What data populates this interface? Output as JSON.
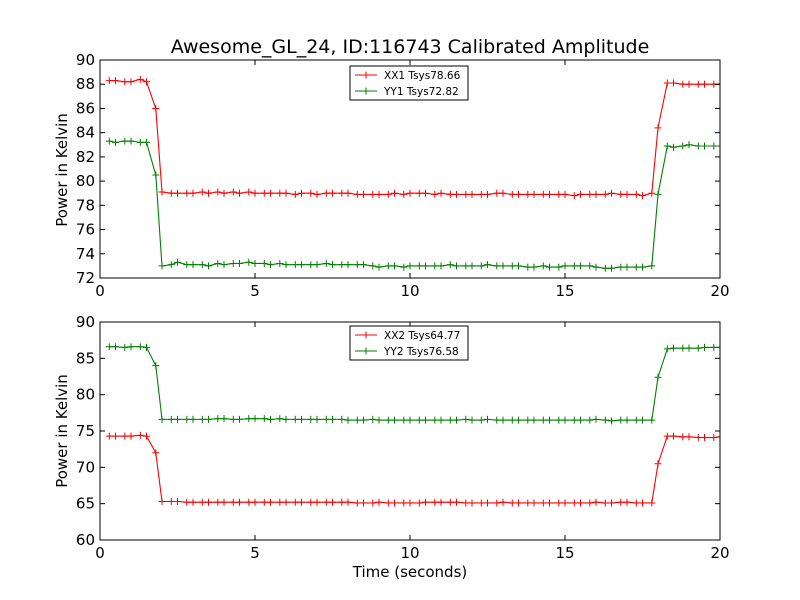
{
  "chart_data": [
    {
      "type": "line",
      "title": "Awesome_GL_24, ID:116743 Calibrated Amplitude",
      "xlabel": "",
      "ylabel": "Power in Kelvin",
      "xlim": [
        0,
        20
      ],
      "ylim": [
        72,
        90
      ],
      "xticks": [
        0,
        5,
        10,
        15,
        20
      ],
      "yticks": [
        72,
        74,
        76,
        78,
        80,
        82,
        84,
        86,
        88,
        90
      ],
      "legend_position": "top-center",
      "series": [
        {
          "name": "XX1 Tsys78.66",
          "color": "#ff0000",
          "x": [
            0.3,
            0.5,
            0.8,
            1.0,
            1.3,
            1.5,
            1.8,
            2.0,
            2.3,
            2.5,
            2.8,
            3.0,
            3.3,
            3.5,
            3.8,
            4.0,
            4.3,
            4.5,
            4.8,
            5.0,
            5.3,
            5.5,
            5.8,
            6.0,
            6.3,
            6.5,
            6.8,
            7.0,
            7.3,
            7.5,
            7.8,
            8.0,
            8.3,
            8.5,
            8.8,
            9.0,
            9.3,
            9.5,
            9.8,
            10.0,
            10.3,
            10.5,
            10.8,
            11.0,
            11.3,
            11.5,
            11.8,
            12.0,
            12.3,
            12.5,
            12.8,
            13.0,
            13.3,
            13.5,
            13.8,
            14.0,
            14.3,
            14.5,
            14.8,
            15.0,
            15.3,
            15.5,
            15.8,
            16.0,
            16.3,
            16.5,
            16.8,
            17.0,
            17.3,
            17.5,
            17.8,
            18.0,
            18.3,
            18.5,
            18.8,
            19.0,
            19.3,
            19.5,
            19.8,
            20.0
          ],
          "values": [
            88.3,
            88.3,
            88.2,
            88.2,
            88.4,
            88.2,
            86.0,
            79.1,
            79.0,
            79.0,
            79.0,
            79.0,
            79.1,
            79.0,
            79.1,
            79.0,
            79.1,
            79.0,
            79.1,
            79.0,
            79.0,
            79.0,
            79.0,
            79.0,
            78.9,
            79.0,
            79.0,
            78.9,
            79.0,
            79.0,
            79.0,
            79.0,
            78.9,
            78.9,
            78.9,
            78.9,
            78.9,
            79.0,
            78.9,
            79.0,
            79.0,
            79.0,
            78.9,
            79.0,
            78.9,
            78.9,
            78.9,
            78.9,
            78.9,
            78.9,
            79.0,
            79.0,
            78.9,
            78.9,
            78.9,
            78.9,
            78.9,
            78.9,
            78.9,
            78.9,
            78.8,
            78.9,
            78.9,
            78.9,
            78.9,
            79.0,
            78.9,
            78.9,
            78.9,
            78.8,
            79.0,
            84.4,
            88.1,
            88.1,
            88.0,
            88.0,
            88.0,
            88.0,
            88.0,
            88.0
          ]
        },
        {
          "name": "YY1 Tsys72.82",
          "color": "#008000",
          "x": [
            0.3,
            0.5,
            0.8,
            1.0,
            1.3,
            1.5,
            1.8,
            2.0,
            2.3,
            2.5,
            2.8,
            3.0,
            3.3,
            3.5,
            3.8,
            4.0,
            4.3,
            4.5,
            4.8,
            5.0,
            5.3,
            5.5,
            5.8,
            6.0,
            6.3,
            6.5,
            6.8,
            7.0,
            7.3,
            7.5,
            7.8,
            8.0,
            8.3,
            8.5,
            8.8,
            9.0,
            9.3,
            9.5,
            9.8,
            10.0,
            10.3,
            10.5,
            10.8,
            11.0,
            11.3,
            11.5,
            11.8,
            12.0,
            12.3,
            12.5,
            12.8,
            13.0,
            13.3,
            13.5,
            13.8,
            14.0,
            14.3,
            14.5,
            14.8,
            15.0,
            15.3,
            15.5,
            15.8,
            16.0,
            16.3,
            16.5,
            16.8,
            17.0,
            17.3,
            17.5,
            17.8,
            18.0,
            18.3,
            18.5,
            18.8,
            19.0,
            19.3,
            19.5,
            19.8,
            20.0
          ],
          "values": [
            83.3,
            83.2,
            83.3,
            83.3,
            83.2,
            83.2,
            80.5,
            73.0,
            73.1,
            73.3,
            73.1,
            73.1,
            73.1,
            73.0,
            73.2,
            73.1,
            73.2,
            73.2,
            73.3,
            73.2,
            73.2,
            73.1,
            73.2,
            73.1,
            73.1,
            73.1,
            73.1,
            73.1,
            73.2,
            73.1,
            73.1,
            73.1,
            73.1,
            73.1,
            73.0,
            72.9,
            73.0,
            73.0,
            72.9,
            73.0,
            73.0,
            73.0,
            73.0,
            73.0,
            73.1,
            73.0,
            73.0,
            73.0,
            73.0,
            73.1,
            73.0,
            73.0,
            73.0,
            73.0,
            72.9,
            72.9,
            73.0,
            72.9,
            72.9,
            73.0,
            73.0,
            73.0,
            73.0,
            72.9,
            72.8,
            72.8,
            72.9,
            72.9,
            72.9,
            72.9,
            73.0,
            78.9,
            82.9,
            82.8,
            82.9,
            83.0,
            82.9,
            82.9,
            82.9,
            82.9
          ]
        }
      ]
    },
    {
      "type": "line",
      "title": "",
      "xlabel": "Time (seconds)",
      "ylabel": "Power in Kelvin",
      "xlim": [
        0,
        20
      ],
      "ylim": [
        60,
        90
      ],
      "xticks": [
        0,
        5,
        10,
        15,
        20
      ],
      "yticks": [
        60,
        65,
        70,
        75,
        80,
        85,
        90
      ],
      "legend_position": "top-center",
      "series": [
        {
          "name": "XX2 Tsys64.77",
          "color": "#ff0000",
          "x": [
            0.3,
            0.5,
            0.8,
            1.0,
            1.3,
            1.5,
            1.8,
            2.0,
            2.3,
            2.5,
            2.8,
            3.0,
            3.3,
            3.5,
            3.8,
            4.0,
            4.3,
            4.5,
            4.8,
            5.0,
            5.3,
            5.5,
            5.8,
            6.0,
            6.3,
            6.5,
            6.8,
            7.0,
            7.3,
            7.5,
            7.8,
            8.0,
            8.3,
            8.5,
            8.8,
            9.0,
            9.3,
            9.5,
            9.8,
            10.0,
            10.3,
            10.5,
            10.8,
            11.0,
            11.3,
            11.5,
            11.8,
            12.0,
            12.3,
            12.5,
            12.8,
            13.0,
            13.3,
            13.5,
            13.8,
            14.0,
            14.3,
            14.5,
            14.8,
            15.0,
            15.3,
            15.5,
            15.8,
            16.0,
            16.3,
            16.5,
            16.8,
            17.0,
            17.3,
            17.5,
            17.8,
            18.0,
            18.3,
            18.5,
            18.8,
            19.0,
            19.3,
            19.5,
            19.8,
            20.0
          ],
          "values": [
            74.3,
            74.3,
            74.3,
            74.3,
            74.4,
            74.3,
            72.0,
            65.3,
            65.3,
            65.3,
            65.2,
            65.2,
            65.2,
            65.2,
            65.2,
            65.2,
            65.2,
            65.2,
            65.2,
            65.2,
            65.2,
            65.2,
            65.2,
            65.2,
            65.2,
            65.2,
            65.2,
            65.2,
            65.2,
            65.2,
            65.2,
            65.2,
            65.1,
            65.1,
            65.1,
            65.2,
            65.1,
            65.1,
            65.1,
            65.1,
            65.1,
            65.2,
            65.2,
            65.2,
            65.2,
            65.2,
            65.1,
            65.1,
            65.1,
            65.1,
            65.1,
            65.2,
            65.1,
            65.1,
            65.1,
            65.1,
            65.1,
            65.1,
            65.1,
            65.1,
            65.1,
            65.1,
            65.1,
            65.2,
            65.1,
            65.1,
            65.2,
            65.2,
            65.1,
            65.1,
            65.1,
            70.5,
            74.3,
            74.3,
            74.2,
            74.2,
            74.1,
            74.1,
            74.1,
            74.2
          ]
        },
        {
          "name": "YY2 Tsys76.58",
          "color": "#008000",
          "x": [
            0.3,
            0.5,
            0.8,
            1.0,
            1.3,
            1.5,
            1.8,
            2.0,
            2.3,
            2.5,
            2.8,
            3.0,
            3.3,
            3.5,
            3.8,
            4.0,
            4.3,
            4.5,
            4.8,
            5.0,
            5.3,
            5.5,
            5.8,
            6.0,
            6.3,
            6.5,
            6.8,
            7.0,
            7.3,
            7.5,
            7.8,
            8.0,
            8.3,
            8.5,
            8.8,
            9.0,
            9.3,
            9.5,
            9.8,
            10.0,
            10.3,
            10.5,
            10.8,
            11.0,
            11.3,
            11.5,
            11.8,
            12.0,
            12.3,
            12.5,
            12.8,
            13.0,
            13.3,
            13.5,
            13.8,
            14.0,
            14.3,
            14.5,
            14.8,
            15.0,
            15.3,
            15.5,
            15.8,
            16.0,
            16.3,
            16.5,
            16.8,
            17.0,
            17.3,
            17.5,
            17.8,
            18.0,
            18.3,
            18.5,
            18.8,
            19.0,
            19.3,
            19.5,
            19.8,
            20.0
          ],
          "values": [
            86.6,
            86.6,
            86.5,
            86.6,
            86.6,
            86.5,
            84.0,
            76.6,
            76.6,
            76.6,
            76.6,
            76.6,
            76.6,
            76.6,
            76.7,
            76.7,
            76.6,
            76.6,
            76.7,
            76.7,
            76.7,
            76.6,
            76.7,
            76.6,
            76.6,
            76.6,
            76.6,
            76.6,
            76.6,
            76.6,
            76.6,
            76.5,
            76.5,
            76.5,
            76.6,
            76.5,
            76.5,
            76.5,
            76.5,
            76.5,
            76.5,
            76.5,
            76.5,
            76.5,
            76.5,
            76.5,
            76.6,
            76.5,
            76.5,
            76.6,
            76.5,
            76.5,
            76.5,
            76.5,
            76.5,
            76.5,
            76.5,
            76.5,
            76.5,
            76.5,
            76.5,
            76.5,
            76.5,
            76.6,
            76.5,
            76.4,
            76.5,
            76.5,
            76.5,
            76.5,
            76.5,
            82.4,
            86.3,
            86.4,
            86.4,
            86.4,
            86.4,
            86.5,
            86.5,
            86.5
          ]
        }
      ]
    }
  ]
}
